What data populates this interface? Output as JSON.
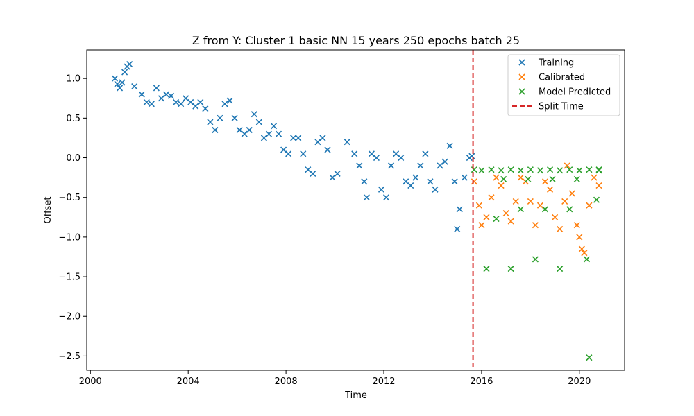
{
  "chart_data": {
    "type": "scatter",
    "title": "Z from Y: Cluster 1 basic NN 15 years 250 epochs batch 25",
    "xlabel": "Time",
    "ylabel": "Offset",
    "xlim": [
      1999.85,
      2021.85
    ],
    "ylim": [
      -2.68,
      1.36
    ],
    "xticks": [
      2000,
      2004,
      2008,
      2012,
      2016,
      2020
    ],
    "yticks": [
      1.0,
      0.5,
      0.0,
      -0.5,
      -1.0,
      -1.5,
      -2.0,
      -2.5
    ],
    "xtick_labels": [
      "2000",
      "2004",
      "2008",
      "2012",
      "2016",
      "2020"
    ],
    "ytick_labels": [
      "1.0",
      "0.5",
      "0.0",
      "−0.5",
      "−1.0",
      "−1.5",
      "−2.0",
      "−2.5"
    ],
    "grid": false,
    "legend_position": "top-right",
    "split_time": 2015.65,
    "series": [
      {
        "name": "Training",
        "marker": "x",
        "color": "#1f77b4",
        "points": [
          [
            2001.0,
            1.0
          ],
          [
            2001.1,
            0.93
          ],
          [
            2001.2,
            0.88
          ],
          [
            2001.3,
            0.95
          ],
          [
            2001.4,
            1.08
          ],
          [
            2001.5,
            1.15
          ],
          [
            2001.6,
            1.18
          ],
          [
            2001.8,
            0.9
          ],
          [
            2002.1,
            0.8
          ],
          [
            2002.3,
            0.7
          ],
          [
            2002.5,
            0.68
          ],
          [
            2002.7,
            0.88
          ],
          [
            2002.9,
            0.75
          ],
          [
            2003.1,
            0.8
          ],
          [
            2003.3,
            0.78
          ],
          [
            2003.5,
            0.7
          ],
          [
            2003.7,
            0.68
          ],
          [
            2003.9,
            0.75
          ],
          [
            2004.1,
            0.7
          ],
          [
            2004.3,
            0.65
          ],
          [
            2004.5,
            0.7
          ],
          [
            2004.7,
            0.62
          ],
          [
            2004.9,
            0.45
          ],
          [
            2005.1,
            0.35
          ],
          [
            2005.3,
            0.5
          ],
          [
            2005.5,
            0.68
          ],
          [
            2005.7,
            0.72
          ],
          [
            2005.9,
            0.5
          ],
          [
            2006.1,
            0.35
          ],
          [
            2006.3,
            0.3
          ],
          [
            2006.5,
            0.35
          ],
          [
            2006.7,
            0.55
          ],
          [
            2006.9,
            0.45
          ],
          [
            2007.1,
            0.25
          ],
          [
            2007.3,
            0.3
          ],
          [
            2007.5,
            0.4
          ],
          [
            2007.7,
            0.3
          ],
          [
            2007.9,
            0.1
          ],
          [
            2008.1,
            0.05
          ],
          [
            2008.3,
            0.25
          ],
          [
            2008.5,
            0.25
          ],
          [
            2008.7,
            0.05
          ],
          [
            2008.9,
            -0.15
          ],
          [
            2009.1,
            -0.2
          ],
          [
            2009.3,
            0.2
          ],
          [
            2009.5,
            0.25
          ],
          [
            2009.7,
            0.1
          ],
          [
            2009.9,
            -0.25
          ],
          [
            2010.1,
            -0.2
          ],
          [
            2010.5,
            0.2
          ],
          [
            2010.8,
            0.05
          ],
          [
            2011.0,
            -0.1
          ],
          [
            2011.2,
            -0.3
          ],
          [
            2011.3,
            -0.5
          ],
          [
            2011.5,
            0.05
          ],
          [
            2011.7,
            0.0
          ],
          [
            2011.9,
            -0.4
          ],
          [
            2012.1,
            -0.5
          ],
          [
            2012.3,
            -0.1
          ],
          [
            2012.5,
            0.05
          ],
          [
            2012.7,
            0.0
          ],
          [
            2012.9,
            -0.3
          ],
          [
            2013.1,
            -0.35
          ],
          [
            2013.3,
            -0.25
          ],
          [
            2013.5,
            -0.1
          ],
          [
            2013.7,
            0.05
          ],
          [
            2013.9,
            -0.3
          ],
          [
            2014.1,
            -0.4
          ],
          [
            2014.3,
            -0.1
          ],
          [
            2014.5,
            -0.05
          ],
          [
            2014.7,
            0.15
          ],
          [
            2014.9,
            -0.3
          ],
          [
            2015.0,
            -0.9
          ],
          [
            2015.1,
            -0.65
          ],
          [
            2015.3,
            -0.25
          ],
          [
            2015.5,
            0.0
          ],
          [
            2015.6,
            0.02
          ]
        ]
      },
      {
        "name": "Calibrated",
        "marker": "x",
        "color": "#ff7f0e",
        "points": [
          [
            2015.7,
            -0.3
          ],
          [
            2015.9,
            -0.6
          ],
          [
            2016.0,
            -0.85
          ],
          [
            2016.2,
            -0.75
          ],
          [
            2016.4,
            -0.5
          ],
          [
            2016.6,
            -0.25
          ],
          [
            2016.8,
            -0.35
          ],
          [
            2017.0,
            -0.7
          ],
          [
            2017.2,
            -0.8
          ],
          [
            2017.4,
            -0.55
          ],
          [
            2017.6,
            -0.25
          ],
          [
            2017.8,
            -0.3
          ],
          [
            2018.0,
            -0.55
          ],
          [
            2018.2,
            -0.85
          ],
          [
            2018.4,
            -0.6
          ],
          [
            2018.6,
            -0.3
          ],
          [
            2018.8,
            -0.4
          ],
          [
            2019.0,
            -0.75
          ],
          [
            2019.2,
            -0.9
          ],
          [
            2019.4,
            -0.55
          ],
          [
            2019.5,
            -0.1
          ],
          [
            2019.7,
            -0.45
          ],
          [
            2019.9,
            -0.85
          ],
          [
            2020.0,
            -1.0
          ],
          [
            2020.1,
            -1.15
          ],
          [
            2020.2,
            -1.2
          ],
          [
            2020.4,
            -0.6
          ],
          [
            2020.6,
            -0.25
          ],
          [
            2020.8,
            -0.35
          ]
        ]
      },
      {
        "name": "Model Predicted",
        "marker": "x",
        "color": "#2ca02c",
        "points": [
          [
            2015.7,
            -0.15
          ],
          [
            2016.0,
            -0.16
          ],
          [
            2016.4,
            -0.15
          ],
          [
            2016.8,
            -0.16
          ],
          [
            2017.2,
            -0.15
          ],
          [
            2017.6,
            -0.16
          ],
          [
            2018.0,
            -0.15
          ],
          [
            2018.4,
            -0.16
          ],
          [
            2018.8,
            -0.15
          ],
          [
            2019.2,
            -0.16
          ],
          [
            2019.6,
            -0.15
          ],
          [
            2020.0,
            -0.16
          ],
          [
            2020.4,
            -0.15
          ],
          [
            2020.8,
            -0.16
          ],
          [
            2016.2,
            -1.4
          ],
          [
            2016.6,
            -0.77
          ],
          [
            2016.9,
            -0.27
          ],
          [
            2017.2,
            -1.4
          ],
          [
            2017.6,
            -0.65
          ],
          [
            2017.9,
            -0.27
          ],
          [
            2018.2,
            -1.28
          ],
          [
            2018.6,
            -0.65
          ],
          [
            2018.9,
            -0.27
          ],
          [
            2019.2,
            -1.4
          ],
          [
            2019.6,
            -0.65
          ],
          [
            2019.9,
            -0.27
          ],
          [
            2020.3,
            -1.28
          ],
          [
            2020.4,
            -2.52
          ],
          [
            2020.7,
            -0.53
          ],
          [
            2020.8,
            -0.15
          ]
        ]
      }
    ],
    "legend": [
      {
        "label": "Training",
        "kind": "marker",
        "color": "#1f77b4"
      },
      {
        "label": "Calibrated",
        "kind": "marker",
        "color": "#ff7f0e"
      },
      {
        "label": "Model Predicted",
        "kind": "marker",
        "color": "#2ca02c"
      },
      {
        "label": "Split Time",
        "kind": "dashed-line",
        "color": "#d62728"
      }
    ]
  }
}
